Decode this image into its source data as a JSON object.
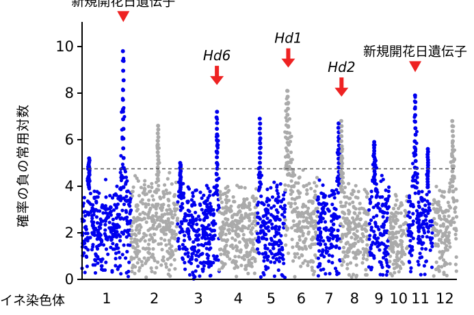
{
  "chart_data": {
    "type": "scatter",
    "ylabel": "確率の負の常用対数",
    "xlabel": "イネ染色体",
    "ylim": [
      0,
      11
    ],
    "yticks": [
      "0",
      "2",
      "4",
      "6",
      "8",
      "10"
    ],
    "threshold": 4.75,
    "colors": {
      "odd": "#0000ee",
      "even": "#aaaaaa",
      "arrow": "#ee2222",
      "threshold": "#555555"
    },
    "chromosomes": [
      {
        "label": "1",
        "start": 0,
        "end": 10.6,
        "base_max": 4.4,
        "peaks": [
          {
            "pos": 1.5,
            "max": 5.2,
            "w": 0.9
          },
          {
            "pos": 8.9,
            "max": 9.8,
            "w": 0.7
          }
        ]
      },
      {
        "label": "2",
        "start": 10.6,
        "end": 20.6,
        "base_max": 4.8,
        "peaks": [
          {
            "pos": 5.8,
            "max": 6.6,
            "w": 0.6
          }
        ]
      },
      {
        "label": "3",
        "start": 20.6,
        "end": 29.6,
        "base_max": 4.2,
        "peaks": [
          {
            "pos": 0.6,
            "max": 5.0,
            "w": 0.8
          },
          {
            "pos": 8.5,
            "max": 7.2,
            "w": 0.7
          }
        ]
      },
      {
        "label": "4",
        "start": 29.6,
        "end": 37.8,
        "base_max": 4.3,
        "peaks": []
      },
      {
        "label": "5",
        "start": 37.8,
        "end": 43.8,
        "base_max": 4.4,
        "peaks": [
          {
            "pos": 0.6,
            "max": 6.9,
            "w": 0.6
          }
        ]
      },
      {
        "label": "6",
        "start": 43.8,
        "end": 50.8,
        "base_max": 5.0,
        "peaks": [
          {
            "pos": 0.6,
            "max": 8.1,
            "w": 1.6
          }
        ]
      },
      {
        "label": "7",
        "start": 50.8,
        "end": 55.8,
        "base_max": 4.5,
        "peaks": [
          {
            "pos": 4.6,
            "max": 6.7,
            "w": 0.7
          }
        ]
      },
      {
        "label": "8",
        "start": 55.8,
        "end": 61.8,
        "base_max": 4.2,
        "peaks": [
          {
            "pos": 0.2,
            "max": 6.8,
            "w": 0.6
          }
        ]
      },
      {
        "label": "9",
        "start": 61.8,
        "end": 66.3,
        "base_max": 4.6,
        "peaks": [
          {
            "pos": 1.3,
            "max": 5.9,
            "w": 1.0
          }
        ]
      },
      {
        "label": "10",
        "start": 66.3,
        "end": 70.3,
        "base_max": 4.0,
        "peaks": []
      },
      {
        "label": "11",
        "start": 70.3,
        "end": 75.7,
        "base_max": 4.4,
        "peaks": [
          {
            "pos": 1.6,
            "max": 7.9,
            "w": 0.8
          },
          {
            "pos": 4.3,
            "max": 5.6,
            "w": 0.6
          }
        ]
      },
      {
        "label": "12",
        "start": 75.7,
        "end": 80.9,
        "base_max": 4.2,
        "peaks": [
          {
            "pos": 4.3,
            "max": 6.8,
            "w": 0.9
          }
        ]
      }
    ],
    "annotations": [
      {
        "text": "新規開花日遺伝子",
        "italic": false,
        "arrow_x": 8.9,
        "arrow_y": 11.05
      },
      {
        "text": "Hd6",
        "italic": true,
        "arrow_x": 29.1,
        "arrow_y": 8.35
      },
      {
        "text": "Hd1",
        "italic": true,
        "arrow_x": 44.5,
        "arrow_y": 9.1
      },
      {
        "text": "Hd2",
        "italic": true,
        "arrow_x": 56.0,
        "arrow_y": 7.85
      },
      {
        "text": "新規開花日遺伝子",
        "italic": false,
        "arrow_x": 71.9,
        "arrow_y": 8.9
      }
    ]
  }
}
